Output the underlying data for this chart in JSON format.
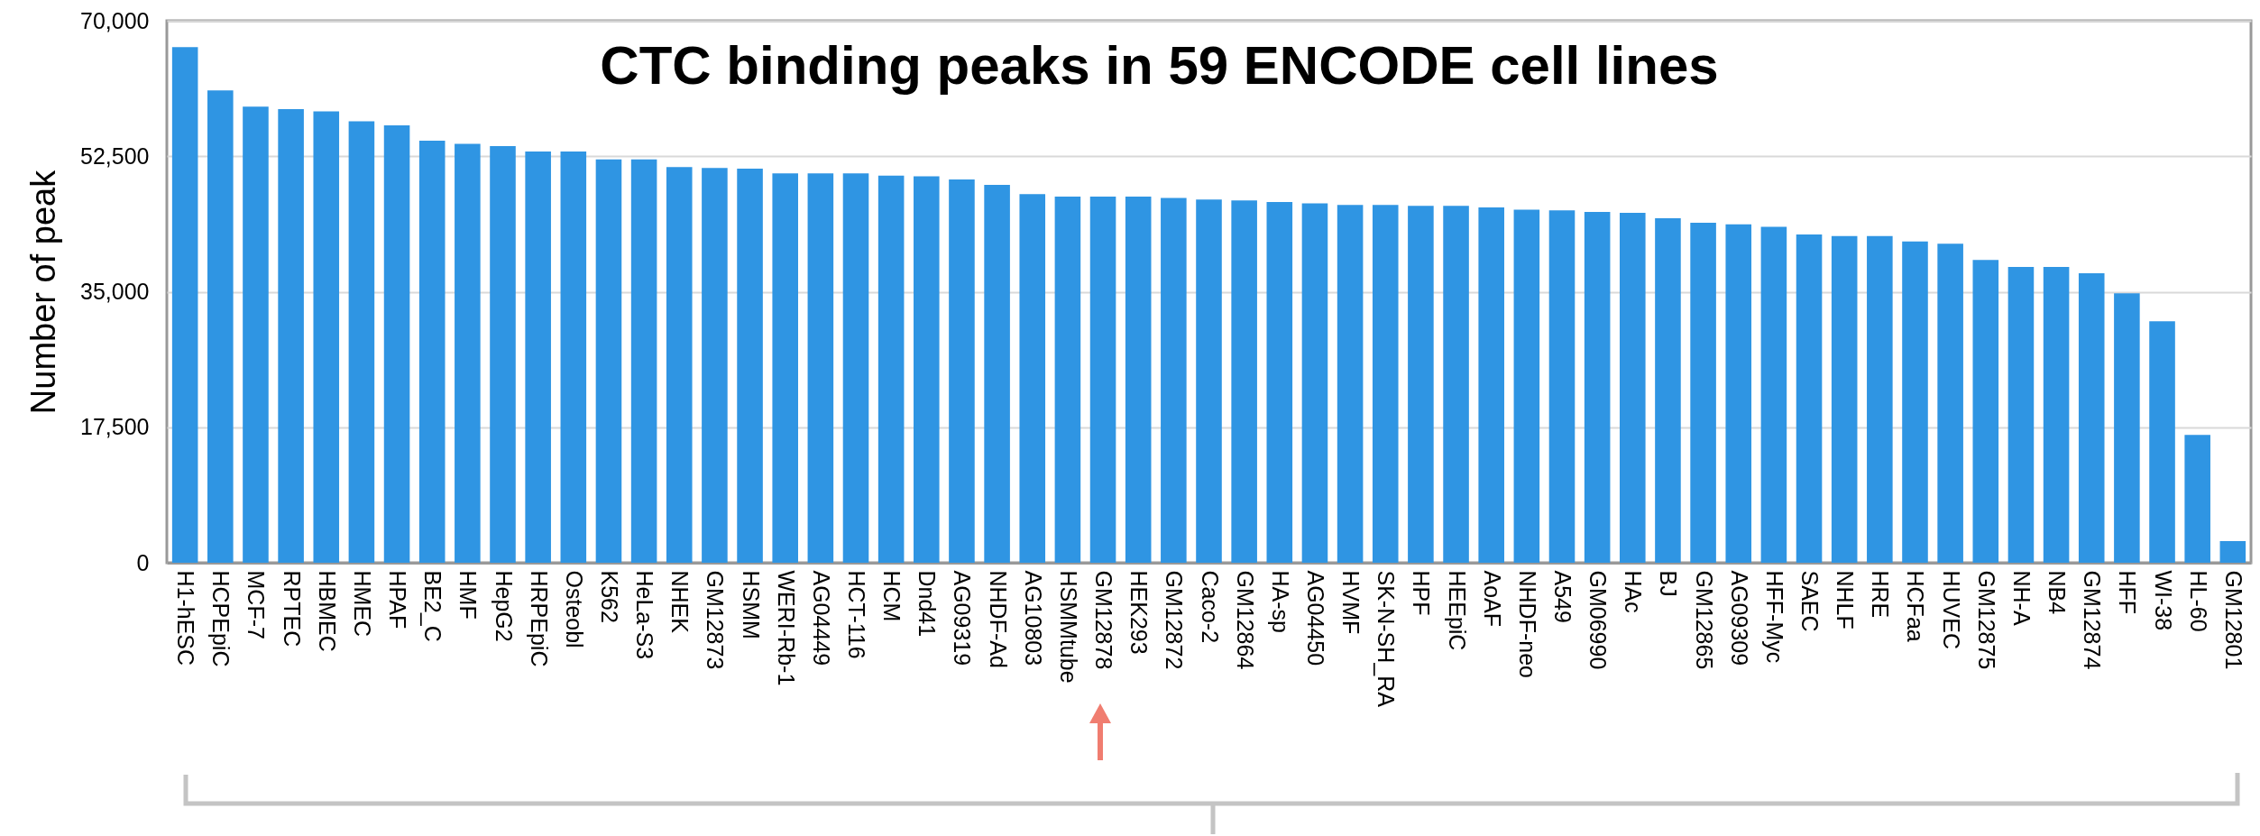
{
  "chart_data": {
    "type": "bar",
    "title": "CTC binding peaks in 59 ENCODE cell lines",
    "ylabel": "Number of peak",
    "categories": [
      "H1-hESC",
      "HCPEpiC",
      "MCF-7",
      "RPTEC",
      "HBMEC",
      "HMEC",
      "HPAF",
      "BE2_C",
      "HMF",
      "HepG2",
      "HRPEpiC",
      "Osteobl",
      "K562",
      "HeLa-S3",
      "NHEK",
      "GM12873",
      "HSMM",
      "WERI-Rb-1",
      "AG04449",
      "HCT-116",
      "HCM",
      "Dnd41",
      "AG09319",
      "NHDF-Ad",
      "AG10803",
      "HSMMtube",
      "GM12878",
      "HEK293",
      "GM12872",
      "Caco-2",
      "GM12864",
      "HA-sp",
      "AG04450",
      "HVMF",
      "SK-N-SH_RA",
      "HPF",
      "HEEpiC",
      "AoAF",
      "NHDF-neo",
      "A549",
      "GM06990",
      "HAc",
      "BJ",
      "GM12865",
      "AG09309",
      "HFF-Myc",
      "SAEC",
      "NHLF",
      "HRE",
      "HCFaa",
      "HUVEC",
      "GM12875",
      "NH-A",
      "NB4",
      "GM12874",
      "HFF",
      "WI-38",
      "HL-60",
      "GM12801"
    ],
    "values": [
      66600,
      61000,
      58900,
      58600,
      58300,
      57000,
      56500,
      54500,
      54100,
      53800,
      53100,
      53100,
      52100,
      52100,
      51100,
      51000,
      50900,
      50300,
      50300,
      50300,
      50000,
      49900,
      49500,
      48800,
      47600,
      47300,
      47300,
      47300,
      47100,
      46900,
      46800,
      46600,
      46400,
      46200,
      46200,
      46100,
      46100,
      45900,
      45600,
      45500,
      45300,
      45200,
      44500,
      43900,
      43700,
      43400,
      42400,
      42200,
      42200,
      41500,
      41200,
      39100,
      38200,
      38200,
      37400,
      34800,
      31200,
      16500,
      2800
    ],
    "color": "#2f95e3",
    "ylim": [
      0,
      70000
    ],
    "yticks": [
      {
        "value": 0,
        "label": "0"
      },
      {
        "value": 17500,
        "label": "17,500"
      },
      {
        "value": 35000,
        "label": "35,000"
      },
      {
        "value": 52500,
        "label": "52,500"
      },
      {
        "value": 70000,
        "label": "70,000"
      }
    ],
    "grid": "y"
  }
}
